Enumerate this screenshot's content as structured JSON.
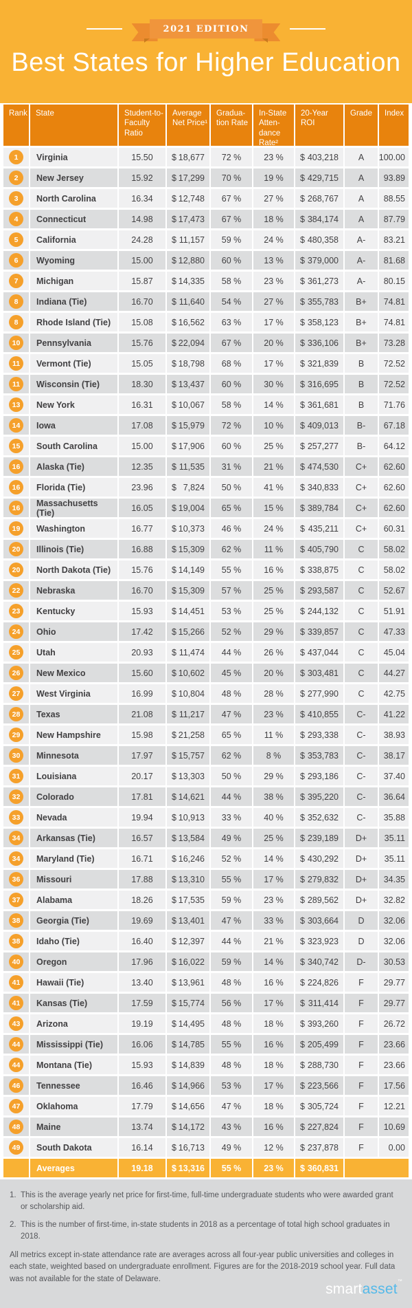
{
  "header": {
    "badge": "2021 EDITION",
    "title": "Best States for Higher Education"
  },
  "table": {
    "columns": [
      "Rank",
      "State",
      "Student-to-Faculty Ratio",
      "Average Net Price¹",
      "Gradua-tion Rate",
      "In-State Atten-dance Rate²",
      "20-Year ROI",
      "Grade",
      "Index"
    ]
  },
  "chart_data": {
    "type": "table",
    "title": "Best States for Higher Education",
    "columns": [
      "Rank",
      "State",
      "Student-to-Faculty Ratio",
      "Average Net Price",
      "Graduation Rate",
      "In-State Attendance Rate",
      "20-Year ROI",
      "Grade",
      "Index"
    ],
    "rows": [
      {
        "rank": "1",
        "state": "Virginia",
        "ratio": "15.50",
        "net_price": "$ 18,677",
        "grad_rate": "72 %",
        "attendance": "23 %",
        "roi": "$ 403,218",
        "grade": "A",
        "index": "100.00"
      },
      {
        "rank": "2",
        "state": "New Jersey",
        "ratio": "15.92",
        "net_price": "$ 17,299",
        "grad_rate": "70 %",
        "attendance": "19 %",
        "roi": "$ 429,715",
        "grade": "A",
        "index": "93.89"
      },
      {
        "rank": "3",
        "state": "North Carolina",
        "ratio": "16.34",
        "net_price": "$ 12,748",
        "grad_rate": "67 %",
        "attendance": "27 %",
        "roi": "$ 268,767",
        "grade": "A",
        "index": "88.55"
      },
      {
        "rank": "4",
        "state": "Connecticut",
        "ratio": "14.98",
        "net_price": "$ 17,473",
        "grad_rate": "67 %",
        "attendance": "18 %",
        "roi": "$ 384,174",
        "grade": "A",
        "index": "87.79"
      },
      {
        "rank": "5",
        "state": "California",
        "ratio": "24.28",
        "net_price": "$ 11,157",
        "grad_rate": "59 %",
        "attendance": "24 %",
        "roi": "$ 480,358",
        "grade": "A-",
        "index": "83.21"
      },
      {
        "rank": "6",
        "state": "Wyoming",
        "ratio": "15.00",
        "net_price": "$ 12,880",
        "grad_rate": "60 %",
        "attendance": "13 %",
        "roi": "$ 379,000",
        "grade": "A-",
        "index": "81.68"
      },
      {
        "rank": "7",
        "state": "Michigan",
        "ratio": "15.87",
        "net_price": "$ 14,335",
        "grad_rate": "58 %",
        "attendance": "23 %",
        "roi": "$ 361,273",
        "grade": "A-",
        "index": "80.15"
      },
      {
        "rank": "8",
        "state": "Indiana (Tie)",
        "ratio": "16.70",
        "net_price": "$ 11,640",
        "grad_rate": "54 %",
        "attendance": "27 %",
        "roi": "$ 355,783",
        "grade": "B+",
        "index": "74.81"
      },
      {
        "rank": "8",
        "state": "Rhode Island (Tie)",
        "ratio": "15.08",
        "net_price": "$ 16,562",
        "grad_rate": "63 %",
        "attendance": "17 %",
        "roi": "$ 358,123",
        "grade": "B+",
        "index": "74.81"
      },
      {
        "rank": "10",
        "state": "Pennsylvania",
        "ratio": "15.76",
        "net_price": "$ 22,094",
        "grad_rate": "67 %",
        "attendance": "20 %",
        "roi": "$ 336,106",
        "grade": "B+",
        "index": "73.28"
      },
      {
        "rank": "11",
        "state": "Vermont (Tie)",
        "ratio": "15.05",
        "net_price": "$ 18,798",
        "grad_rate": "68 %",
        "attendance": "17 %",
        "roi": "$ 321,839",
        "grade": "B",
        "index": "72.52"
      },
      {
        "rank": "11",
        "state": "Wisconsin (Tie)",
        "ratio": "18.30",
        "net_price": "$ 13,437",
        "grad_rate": "60 %",
        "attendance": "30 %",
        "roi": "$ 316,695",
        "grade": "B",
        "index": "72.52"
      },
      {
        "rank": "13",
        "state": "New York",
        "ratio": "16.31",
        "net_price": "$ 10,067",
        "grad_rate": "58 %",
        "attendance": "14 %",
        "roi": "$ 361,681",
        "grade": "B",
        "index": "71.76"
      },
      {
        "rank": "14",
        "state": "Iowa",
        "ratio": "17.08",
        "net_price": "$ 15,979",
        "grad_rate": "72 %",
        "attendance": "10 %",
        "roi": "$ 409,013",
        "grade": "B-",
        "index": "67.18"
      },
      {
        "rank": "15",
        "state": "South Carolina",
        "ratio": "15.00",
        "net_price": "$ 17,906",
        "grad_rate": "60 %",
        "attendance": "25 %",
        "roi": "$ 257,277",
        "grade": "B-",
        "index": "64.12"
      },
      {
        "rank": "16",
        "state": "Alaska (Tie)",
        "ratio": "12.35",
        "net_price": "$ 11,535",
        "grad_rate": "31 %",
        "attendance": "21 %",
        "roi": "$ 474,530",
        "grade": "C+",
        "index": "62.60"
      },
      {
        "rank": "16",
        "state": "Florida (Tie)",
        "ratio": "23.96",
        "net_price": "$ 7,824",
        "grad_rate": "50 %",
        "attendance": "41 %",
        "roi": "$ 340,833",
        "grade": "C+",
        "index": "62.60"
      },
      {
        "rank": "16",
        "state": "Massachusetts (Tie)",
        "ratio": "16.05",
        "net_price": "$ 19,004",
        "grad_rate": "65 %",
        "attendance": "15 %",
        "roi": "$ 389,784",
        "grade": "C+",
        "index": "62.60"
      },
      {
        "rank": "19",
        "state": "Washington",
        "ratio": "16.77",
        "net_price": "$ 10,373",
        "grad_rate": "46 %",
        "attendance": "24 %",
        "roi": "$ 435,211",
        "grade": "C+",
        "index": "60.31"
      },
      {
        "rank": "20",
        "state": "Illinois (Tie)",
        "ratio": "16.88",
        "net_price": "$ 15,309",
        "grad_rate": "62 %",
        "attendance": "11 %",
        "roi": "$ 405,790",
        "grade": "C",
        "index": "58.02"
      },
      {
        "rank": "20",
        "state": "North Dakota (Tie)",
        "ratio": "15.76",
        "net_price": "$ 14,149",
        "grad_rate": "55 %",
        "attendance": "16 %",
        "roi": "$ 338,875",
        "grade": "C",
        "index": "58.02"
      },
      {
        "rank": "22",
        "state": "Nebraska",
        "ratio": "16.70",
        "net_price": "$ 15,309",
        "grad_rate": "57 %",
        "attendance": "25 %",
        "roi": "$ 293,587",
        "grade": "C",
        "index": "52.67"
      },
      {
        "rank": "23",
        "state": "Kentucky",
        "ratio": "15.93",
        "net_price": "$ 14,451",
        "grad_rate": "53 %",
        "attendance": "25 %",
        "roi": "$ 244,132",
        "grade": "C",
        "index": "51.91"
      },
      {
        "rank": "24",
        "state": "Ohio",
        "ratio": "17.42",
        "net_price": "$ 15,266",
        "grad_rate": "52 %",
        "attendance": "29 %",
        "roi": "$ 339,857",
        "grade": "C",
        "index": "47.33"
      },
      {
        "rank": "25",
        "state": "Utah",
        "ratio": "20.93",
        "net_price": "$ 11,474",
        "grad_rate": "44 %",
        "attendance": "26 %",
        "roi": "$ 437,044",
        "grade": "C",
        "index": "45.04"
      },
      {
        "rank": "26",
        "state": "New Mexico",
        "ratio": "15.60",
        "net_price": "$ 10,602",
        "grad_rate": "45 %",
        "attendance": "20 %",
        "roi": "$ 303,481",
        "grade": "C",
        "index": "44.27"
      },
      {
        "rank": "27",
        "state": "West Virginia",
        "ratio": "16.99",
        "net_price": "$ 10,804",
        "grad_rate": "48 %",
        "attendance": "28 %",
        "roi": "$ 277,990",
        "grade": "C",
        "index": "42.75"
      },
      {
        "rank": "28",
        "state": "Texas",
        "ratio": "21.08",
        "net_price": "$ 11,217",
        "grad_rate": "47 %",
        "attendance": "23 %",
        "roi": "$ 410,855",
        "grade": "C-",
        "index": "41.22"
      },
      {
        "rank": "29",
        "state": "New Hampshire",
        "ratio": "15.98",
        "net_price": "$ 21,258",
        "grad_rate": "65 %",
        "attendance": "11 %",
        "roi": "$ 293,338",
        "grade": "C-",
        "index": "38.93"
      },
      {
        "rank": "30",
        "state": "Minnesota",
        "ratio": "17.97",
        "net_price": "$ 15,757",
        "grad_rate": "62 %",
        "attendance": "8 %",
        "roi": "$ 353,783",
        "grade": "C-",
        "index": "38.17"
      },
      {
        "rank": "31",
        "state": "Louisiana",
        "ratio": "20.17",
        "net_price": "$ 13,303",
        "grad_rate": "50 %",
        "attendance": "29 %",
        "roi": "$ 293,186",
        "grade": "C-",
        "index": "37.40"
      },
      {
        "rank": "32",
        "state": "Colorado",
        "ratio": "17.81",
        "net_price": "$ 14,621",
        "grad_rate": "44 %",
        "attendance": "38 %",
        "roi": "$ 395,220",
        "grade": "C-",
        "index": "36.64"
      },
      {
        "rank": "33",
        "state": "Nevada",
        "ratio": "19.94",
        "net_price": "$ 10,913",
        "grad_rate": "33 %",
        "attendance": "40 %",
        "roi": "$ 352,632",
        "grade": "C-",
        "index": "35.88"
      },
      {
        "rank": "34",
        "state": "Arkansas (Tie)",
        "ratio": "16.57",
        "net_price": "$ 13,584",
        "grad_rate": "49 %",
        "attendance": "25 %",
        "roi": "$ 239,189",
        "grade": "D+",
        "index": "35.11"
      },
      {
        "rank": "34",
        "state": "Maryland (Tie)",
        "ratio": "16.71",
        "net_price": "$ 16,246",
        "grad_rate": "52 %",
        "attendance": "14 %",
        "roi": "$ 430,292",
        "grade": "D+",
        "index": "35.11"
      },
      {
        "rank": "36",
        "state": "Missouri",
        "ratio": "17.88",
        "net_price": "$ 13,310",
        "grad_rate": "55 %",
        "attendance": "17 %",
        "roi": "$ 279,832",
        "grade": "D+",
        "index": "34.35"
      },
      {
        "rank": "37",
        "state": "Alabama",
        "ratio": "18.26",
        "net_price": "$ 17,535",
        "grad_rate": "59 %",
        "attendance": "23 %",
        "roi": "$ 289,562",
        "grade": "D+",
        "index": "32.82"
      },
      {
        "rank": "38",
        "state": "Georgia (Tie)",
        "ratio": "19.69",
        "net_price": "$ 13,401",
        "grad_rate": "47 %",
        "attendance": "33 %",
        "roi": "$ 303,664",
        "grade": "D",
        "index": "32.06"
      },
      {
        "rank": "38",
        "state": "Idaho (Tie)",
        "ratio": "16.40",
        "net_price": "$ 12,397",
        "grad_rate": "44 %",
        "attendance": "21 %",
        "roi": "$ 323,923",
        "grade": "D",
        "index": "32.06"
      },
      {
        "rank": "40",
        "state": "Oregon",
        "ratio": "17.96",
        "net_price": "$ 16,022",
        "grad_rate": "59 %",
        "attendance": "14 %",
        "roi": "$ 340,742",
        "grade": "D-",
        "index": "30.53"
      },
      {
        "rank": "41",
        "state": "Hawaii (Tie)",
        "ratio": "13.40",
        "net_price": "$ 13,961",
        "grad_rate": "48 %",
        "attendance": "16 %",
        "roi": "$ 224,826",
        "grade": "F",
        "index": "29.77"
      },
      {
        "rank": "41",
        "state": "Kansas (Tie)",
        "ratio": "17.59",
        "net_price": "$ 15,774",
        "grad_rate": "56 %",
        "attendance": "17 %",
        "roi": "$ 311,414",
        "grade": "F",
        "index": "29.77"
      },
      {
        "rank": "43",
        "state": "Arizona",
        "ratio": "19.19",
        "net_price": "$ 14,495",
        "grad_rate": "48 %",
        "attendance": "18 %",
        "roi": "$ 393,260",
        "grade": "F",
        "index": "26.72"
      },
      {
        "rank": "44",
        "state": "Mississippi (Tie)",
        "ratio": "16.06",
        "net_price": "$ 14,785",
        "grad_rate": "55 %",
        "attendance": "16 %",
        "roi": "$ 205,499",
        "grade": "F",
        "index": "23.66"
      },
      {
        "rank": "44",
        "state": "Montana (Tie)",
        "ratio": "15.93",
        "net_price": "$ 14,839",
        "grad_rate": "48 %",
        "attendance": "18 %",
        "roi": "$ 288,730",
        "grade": "F",
        "index": "23.66"
      },
      {
        "rank": "46",
        "state": "Tennessee",
        "ratio": "16.46",
        "net_price": "$ 14,966",
        "grad_rate": "53 %",
        "attendance": "17 %",
        "roi": "$ 223,566",
        "grade": "F",
        "index": "17.56"
      },
      {
        "rank": "47",
        "state": "Oklahoma",
        "ratio": "17.79",
        "net_price": "$ 14,656",
        "grad_rate": "47 %",
        "attendance": "18 %",
        "roi": "$ 305,724",
        "grade": "F",
        "index": "12.21"
      },
      {
        "rank": "48",
        "state": "Maine",
        "ratio": "13.74",
        "net_price": "$ 14,172",
        "grad_rate": "43 %",
        "attendance": "16 %",
        "roi": "$ 227,824",
        "grade": "F",
        "index": "10.69"
      },
      {
        "rank": "49",
        "state": "South Dakota",
        "ratio": "16.14",
        "net_price": "$ 16,713",
        "grad_rate": "49 %",
        "attendance": "12 %",
        "roi": "$ 237,878",
        "grade": "F",
        "index": "0.00"
      }
    ],
    "averages": {
      "label": "Averages",
      "ratio": "19.18",
      "net_price": "$ 13,316",
      "grad_rate": "55 %",
      "attendance": "23 %",
      "roi": "$ 360,831"
    }
  },
  "footnotes": [
    {
      "num": "1.",
      "text": "This is the average yearly net price for first-time, full-time undergraduate students who were awarded grant or scholarship aid."
    },
    {
      "num": "2.",
      "text": "This is the number of first-time, in-state students in 2018 as a percentage of total high school graduates in 2018."
    }
  ],
  "footer_paragraph": "All metrics except in-state attendance rate are averages across all four-year public universities and colleges in each state, weighted based on undergraduate enrollment. Figures are for the 2018-2019 school year. Full data was not available for the state of Delaware.",
  "logo": {
    "part1": "smart",
    "part2": "asset",
    "tm": "™"
  },
  "colors": {
    "background_gold": "#F9B234",
    "header_orange": "#E8830D",
    "rank_circle": "#F5A02B",
    "row_light": "#F0F0F1",
    "row_dark": "#DCDDDE",
    "notes_bg": "#D8D9DA",
    "text": "#414042",
    "logo_blue": "#54B9E9"
  }
}
